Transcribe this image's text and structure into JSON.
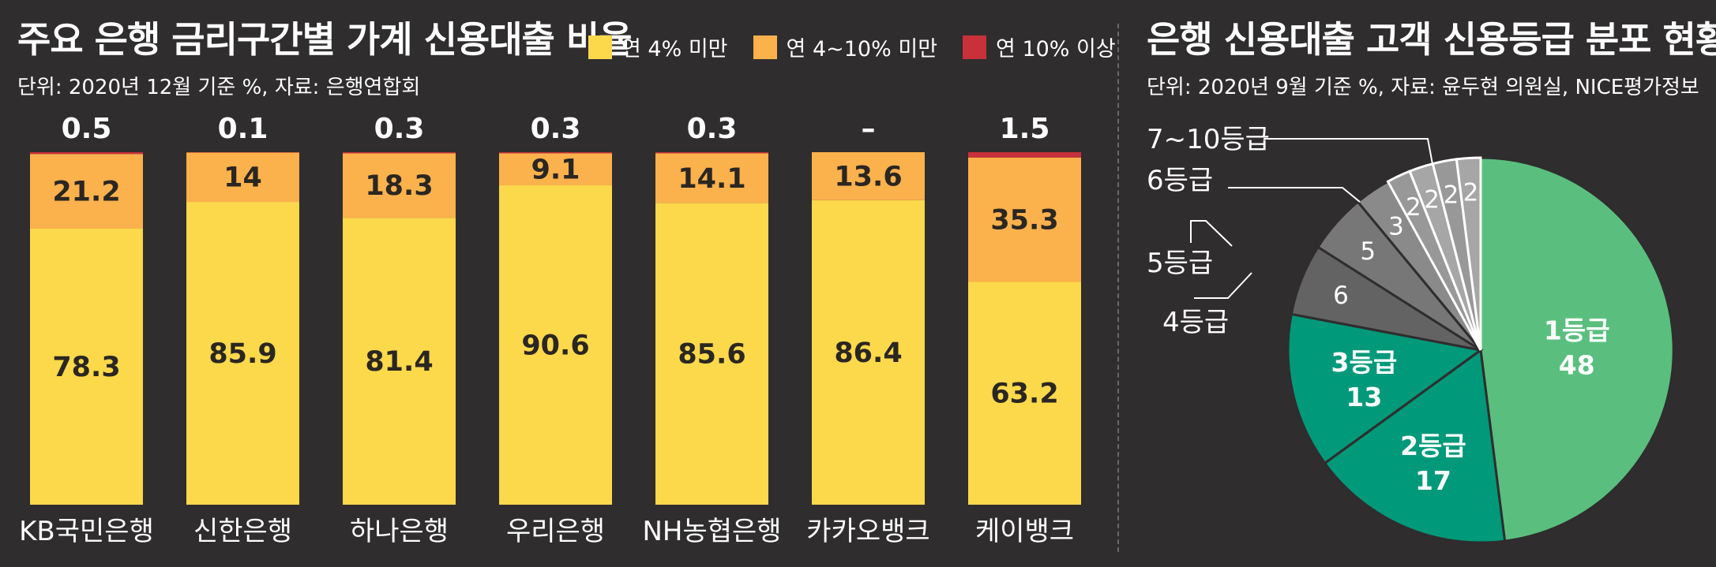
{
  "colors": {
    "bg": "#2f2d2e",
    "under4": "#fcd84b",
    "between4_10": "#fbb14c",
    "over10": "#c8303a",
    "grade1": "#5abf7e",
    "grade2": "#00997a",
    "grade3": "#00997a",
    "grade4": "#636363",
    "grade5": "#777777",
    "grade6": "#8a8a8a",
    "grade7_10": "#9e9e9e"
  },
  "chart_data": [
    {
      "type": "bar",
      "stacked": true,
      "title": "주요 은행 금리구간별 가계 신용대출 비율",
      "subtitle": "단위: 2020년 12월 기준 %, 자료: 은행연합회",
      "categories": [
        "KB국민은행",
        "신한은행",
        "하나은행",
        "우리은행",
        "NH농협은행",
        "카카오뱅크",
        "케이뱅크"
      ],
      "series": [
        {
          "name": "연 4% 미만",
          "values": [
            78.3,
            85.9,
            81.4,
            90.6,
            85.6,
            86.4,
            63.2
          ],
          "labels": [
            "78.3",
            "85.9",
            "81.4",
            "90.6",
            "85.6",
            "86.4",
            "63.2"
          ]
        },
        {
          "name": "연 4~10% 미만",
          "values": [
            21.2,
            14,
            18.3,
            9.1,
            14.1,
            13.6,
            35.3
          ],
          "labels": [
            "21.2",
            "14",
            "18.3",
            "9.1",
            "14.1",
            "13.6",
            "35.3"
          ]
        },
        {
          "name": "연 10% 이상",
          "values": [
            0.5,
            0.1,
            0.3,
            0.3,
            0.3,
            0,
            1.5
          ],
          "labels": [
            "0.5",
            "0.1",
            "0.3",
            "0.3",
            "0.3",
            "–",
            "1.5"
          ]
        }
      ],
      "ylim": [
        0,
        100
      ],
      "legend": "top-right"
    },
    {
      "type": "pie",
      "title": "은행 신용대출 고객 신용등급 분포 현황",
      "subtitle": "단위: 2020년 9월 기준 %, 자료: 윤두현 의원실, NICE평가정보",
      "slices": [
        {
          "label": "1등급",
          "value": 48,
          "value_label": "48"
        },
        {
          "label": "2등급",
          "value": 17,
          "value_label": "17"
        },
        {
          "label": "3등급",
          "value": 13,
          "value_label": "13"
        },
        {
          "label": "4등급",
          "value": 6,
          "value_label": "6"
        },
        {
          "label": "5등급",
          "value": 5,
          "value_label": "5"
        },
        {
          "label": "6등급",
          "value": 3,
          "value_label": "3"
        },
        {
          "label": "7~10등급",
          "value": 8,
          "sub_values": [
            2,
            2,
            2,
            2
          ],
          "sub_labels": [
            "2",
            "2",
            "2",
            "2"
          ]
        }
      ]
    }
  ]
}
